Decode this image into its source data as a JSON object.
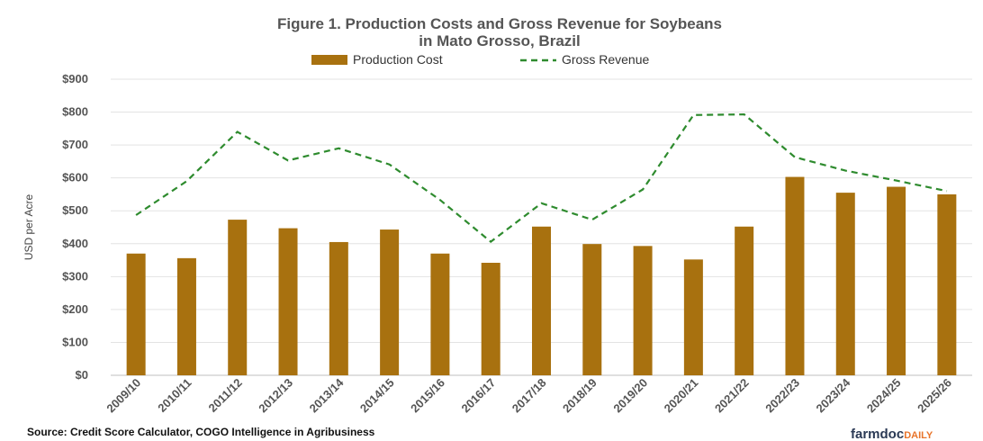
{
  "chart_data": {
    "type": "bar",
    "title": "Figure 1. Production Costs and Gross Revenue for Soybeans",
    "subtitle": "in Mato Grosso, Brazil",
    "ylabel": "USD per Acre",
    "xlabel": "",
    "ylim": [
      0,
      900
    ],
    "yticks": [
      0,
      100,
      200,
      300,
      400,
      500,
      600,
      700,
      800,
      900
    ],
    "ytick_labels": [
      "$0",
      "$100",
      "$200",
      "$300",
      "$400",
      "$500",
      "$600",
      "$700",
      "$800",
      "$900"
    ],
    "grid": true,
    "legend_position": "top",
    "categories": [
      "2009/10",
      "2010/11",
      "2011/12",
      "2012/13",
      "2013/14",
      "2014/15",
      "2015/16",
      "2016/17",
      "2017/18",
      "2018/19",
      "2019/20",
      "2020/21",
      "2021/22",
      "2022/23",
      "2023/24",
      "2024/25",
      "2025/26"
    ],
    "series": [
      {
        "name": "Production Cost",
        "type": "bar",
        "color": "#a8710f",
        "values": [
          370,
          356,
          473,
          447,
          405,
          443,
          370,
          342,
          452,
          399,
          393,
          352,
          452,
          603,
          555,
          573,
          550
        ]
      },
      {
        "name": "Gross Revenue",
        "type": "line",
        "style": "dashed",
        "color": "#2e8b2e",
        "values": [
          487,
          590,
          740,
          653,
          690,
          641,
          533,
          406,
          523,
          473,
          565,
          791,
          793,
          663,
          622,
          592,
          560
        ]
      }
    ]
  },
  "footer": {
    "source": "Source: Credit Score Calculator, COGO Intelligence in Agribusiness",
    "brand_main": "farmdoc",
    "brand_accent": "DAILY"
  }
}
